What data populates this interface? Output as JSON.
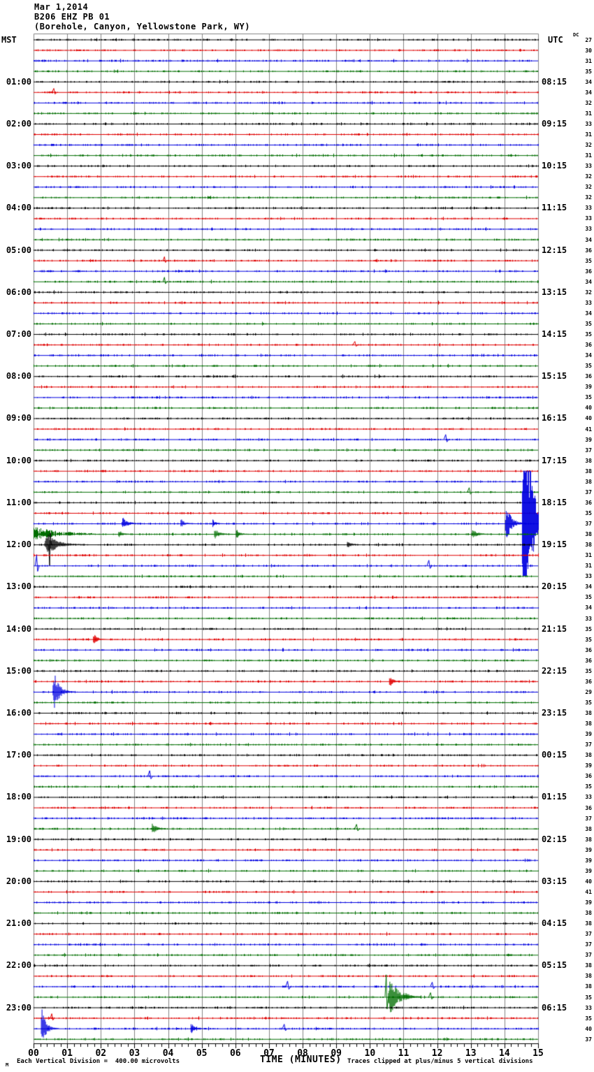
{
  "header": {
    "date": "Mar 1,2014",
    "station": "B206 EHZ PB 01",
    "location": "(Borehole, Canyon, Yellowstone Park, WY)"
  },
  "left_axis": {
    "header": "MST",
    "labels": [
      "01:00",
      "02:00",
      "03:00",
      "04:00",
      "05:00",
      "06:00",
      "07:00",
      "08:00",
      "09:00",
      "10:00",
      "11:00",
      "12:00",
      "13:00",
      "14:00",
      "15:00",
      "16:00",
      "17:00",
      "18:00",
      "19:00",
      "20:00",
      "21:00",
      "22:00",
      "23:00"
    ]
  },
  "right_axis": {
    "header": "UTC",
    "dc_header": "DC",
    "labels": [
      "08:15",
      "09:15",
      "10:15",
      "11:15",
      "12:15",
      "13:15",
      "14:15",
      "15:15",
      "16:15",
      "17:15",
      "18:15",
      "19:15",
      "20:15",
      "21:15",
      "22:15",
      "23:15",
      "00:15",
      "01:15",
      "02:15",
      "03:15",
      "04:15",
      "05:15",
      "06:15"
    ]
  },
  "x_axis": {
    "labels": [
      "00",
      "01",
      "02",
      "03",
      "04",
      "05",
      "06",
      "07",
      "08",
      "09",
      "10",
      "11",
      "12",
      "13",
      "14",
      "15"
    ],
    "title": "TIME (MINUTES)"
  },
  "footer": {
    "prefix": "M",
    "scale_note": "Each Vertical Division =  400.00 microvolts",
    "clip_note": "Traces clipped at plus/minus 5 vertical divisions"
  },
  "chart_data": {
    "type": "line",
    "kind": "helicorder-seismogram",
    "title": "B206 EHZ PB 01 webicorder, Mar 1,2014",
    "xlabel": "TIME (MINUTES)",
    "xlim": [
      0,
      15
    ],
    "rows": 96,
    "minutes_per_row": 15,
    "start_time_mst": "00:00",
    "clip_divisions": 5,
    "microvolts_per_division": 400,
    "color_cycle": [
      "#000000",
      "#e00000",
      "#0000e0",
      "#006e00"
    ],
    "grid_color": "#848484",
    "dc_offsets": [
      27,
      30,
      31,
      35,
      34,
      34,
      32,
      31,
      33,
      31,
      32,
      31,
      33,
      32,
      32,
      32,
      33,
      33,
      33,
      34,
      36,
      35,
      36,
      34,
      32,
      33,
      34,
      35,
      35,
      36,
      34,
      35,
      36,
      39,
      35,
      40,
      40,
      41,
      39,
      37,
      38,
      38,
      38,
      37,
      36,
      35,
      37,
      38,
      38,
      31,
      31,
      33,
      34,
      35,
      34,
      33,
      35,
      35,
      36,
      36,
      35,
      36,
      29,
      35,
      38,
      38,
      39,
      37,
      38,
      39,
      36,
      35,
      33,
      36,
      37,
      38,
      38,
      39,
      39,
      39,
      40,
      41,
      39,
      38,
      38,
      37,
      37,
      37,
      38,
      38,
      38,
      35,
      33,
      35,
      40,
      37
    ],
    "events": [
      {
        "row": 5,
        "t": 0.55,
        "dur": 0.15,
        "amp": 0.35,
        "type": "spike"
      },
      {
        "row": 21,
        "t": 3.85,
        "dur": 0.12,
        "amp": 0.35,
        "type": "spike"
      },
      {
        "row": 23,
        "t": 3.85,
        "dur": 0.12,
        "amp": 0.4,
        "type": "spike"
      },
      {
        "row": 29,
        "t": 9.5,
        "dur": 0.15,
        "amp": 0.3,
        "type": "spike"
      },
      {
        "row": 38,
        "t": 12.2,
        "dur": 0.15,
        "amp": 0.45,
        "type": "spike"
      },
      {
        "row": 43,
        "t": 12.9,
        "dur": 0.15,
        "amp": 0.4,
        "type": "spike"
      },
      {
        "row": 46,
        "t": 2.6,
        "dur": 0.3,
        "amp": 0.5,
        "type": "burst"
      },
      {
        "row": 46,
        "t": 4.35,
        "dur": 0.2,
        "amp": 0.4,
        "type": "burst"
      },
      {
        "row": 46,
        "t": 5.3,
        "dur": 0.15,
        "amp": 0.35,
        "type": "burst"
      },
      {
        "row": 46,
        "t": 14.0,
        "dur": 0.3,
        "amp": 1.5,
        "type": "burst"
      },
      {
        "row": 46,
        "t": 14.5,
        "dur": 0.4,
        "amp": 12.0,
        "type": "burst"
      },
      {
        "row": 47,
        "t": 0.0,
        "dur": 1.8,
        "amp": 0.7,
        "type": "coda"
      },
      {
        "row": 47,
        "t": 2.5,
        "dur": 0.2,
        "amp": 0.35,
        "type": "burst"
      },
      {
        "row": 47,
        "t": 5.35,
        "dur": 0.25,
        "amp": 0.45,
        "type": "burst"
      },
      {
        "row": 47,
        "t": 6.0,
        "dur": 0.2,
        "amp": 0.4,
        "type": "burst"
      },
      {
        "row": 47,
        "t": 13.0,
        "dur": 0.3,
        "amp": 0.4,
        "type": "burst"
      },
      {
        "row": 48,
        "t": 0.3,
        "dur": 0.6,
        "amp": 0.9,
        "type": "burst"
      },
      {
        "row": 48,
        "t": 0.45,
        "dur": 0.08,
        "amp": -2.0,
        "type": "spike"
      },
      {
        "row": 48,
        "t": 9.3,
        "dur": 0.2,
        "amp": 0.35,
        "type": "burst"
      },
      {
        "row": 50,
        "t": 0.05,
        "dur": 0.12,
        "amp": 1.0,
        "type": "spike"
      },
      {
        "row": 50,
        "t": 11.7,
        "dur": 0.15,
        "amp": 0.5,
        "type": "spike"
      },
      {
        "row": 57,
        "t": 1.75,
        "dur": 0.2,
        "amp": 0.5,
        "type": "burst"
      },
      {
        "row": 61,
        "t": 10.55,
        "dur": 0.2,
        "amp": 0.5,
        "type": "burst"
      },
      {
        "row": 62,
        "t": 0.55,
        "dur": 0.3,
        "amp": 1.7,
        "type": "quake"
      },
      {
        "row": 70,
        "t": 3.4,
        "dur": 0.15,
        "amp": 0.5,
        "type": "spike"
      },
      {
        "row": 75,
        "t": 3.5,
        "dur": 0.2,
        "amp": 0.6,
        "type": "burst"
      },
      {
        "row": 75,
        "t": 9.55,
        "dur": 0.15,
        "amp": 0.4,
        "type": "spike"
      },
      {
        "row": 90,
        "t": 7.5,
        "dur": 0.15,
        "amp": 0.5,
        "type": "spike"
      },
      {
        "row": 90,
        "t": 11.8,
        "dur": 0.15,
        "amp": 0.4,
        "type": "spike"
      },
      {
        "row": 91,
        "t": 10.45,
        "dur": 0.1,
        "amp": 2.1,
        "type": "spike"
      },
      {
        "row": 91,
        "t": 10.52,
        "dur": 0.45,
        "amp": 1.6,
        "type": "quake"
      },
      {
        "row": 91,
        "t": 11.0,
        "dur": 0.5,
        "amp": 0.5,
        "type": "coda"
      },
      {
        "row": 91,
        "t": 11.75,
        "dur": 0.15,
        "amp": 0.4,
        "type": "spike"
      },
      {
        "row": 93,
        "t": 0.5,
        "dur": 0.12,
        "amp": 0.4,
        "type": "spike"
      },
      {
        "row": 94,
        "t": 0.2,
        "dur": 0.25,
        "amp": 1.6,
        "type": "quake"
      },
      {
        "row": 94,
        "t": 4.65,
        "dur": 0.2,
        "amp": 0.5,
        "type": "burst"
      },
      {
        "row": 94,
        "t": 7.4,
        "dur": 0.15,
        "amp": 0.4,
        "type": "spike"
      }
    ]
  }
}
